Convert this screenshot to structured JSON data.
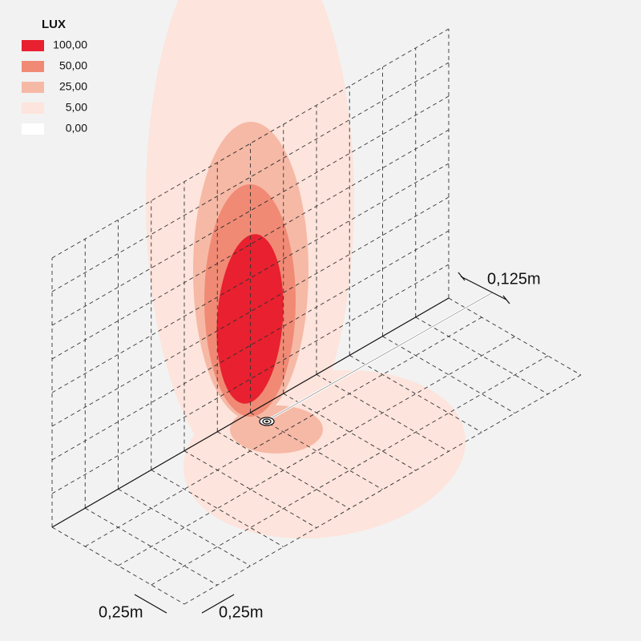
{
  "legend": {
    "title": "LUX",
    "items": [
      {
        "label": "100,00",
        "color": "#e8202f"
      },
      {
        "label": "50,00",
        "color": "#f08a75"
      },
      {
        "label": "25,00",
        "color": "#f6b9a6"
      },
      {
        "label": "5,00",
        "color": "#fde4dc"
      },
      {
        "label": "0,00",
        "color": "#ffffff"
      }
    ]
  },
  "dimensions": {
    "depth": "0,125m",
    "cell_x": "0,25m",
    "cell_y": "0,25m"
  }
}
